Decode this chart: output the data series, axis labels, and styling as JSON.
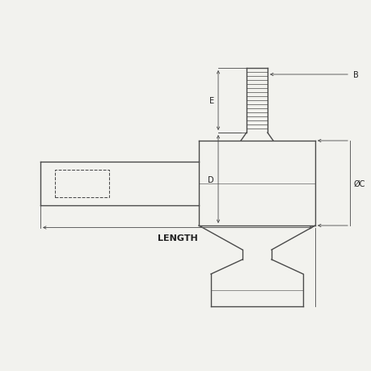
{
  "bg_color": "#f2f2ee",
  "line_color": "#4a4a4a",
  "lw": 1.0,
  "tlw": 0.6,
  "font_size": 7,
  "bold_font_size": 8,
  "label_color": "#222222",
  "labels": {
    "B": "B",
    "E": "E",
    "D": "D",
    "C": "ØC",
    "LENGTH": "LENGTH"
  }
}
